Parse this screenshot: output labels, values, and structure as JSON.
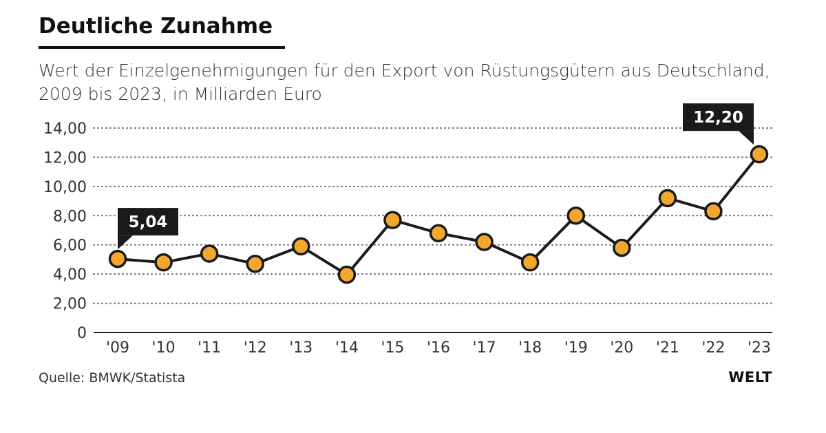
{
  "header": {
    "title": "Deutliche Zunahme",
    "subtitle": "Wert der Einzelgenehmigungen für den Export von Rüstungsgütern aus Deutschland, 2009 bis 2023, in Milliarden Euro"
  },
  "footer": {
    "source": "Quelle: BMWK/Statista",
    "brand": "WELT"
  },
  "colors": {
    "marker_fill": "#F2A72E",
    "line": "#1A1A1A",
    "grid": "#666666",
    "callout_bg": "#1A1A1A",
    "callout_text": "#FFFFFF"
  },
  "chart_data": {
    "type": "line",
    "title": "Deutliche Zunahme",
    "xlabel": "",
    "ylabel": "",
    "categories": [
      "'09",
      "'10",
      "'11",
      "'12",
      "'13",
      "'14",
      "'15",
      "'16",
      "'17",
      "'18",
      "'19",
      "'20",
      "'21",
      "'22",
      "'23"
    ],
    "series": [
      {
        "name": "Wert der Einzelgenehmigungen (Mrd. Euro)",
        "values": [
          5.04,
          4.8,
          5.4,
          4.7,
          5.9,
          3.96,
          7.7,
          6.8,
          6.2,
          4.8,
          8.0,
          5.8,
          9.2,
          8.3,
          12.2
        ]
      }
    ],
    "ylim": [
      0,
      14
    ],
    "yticks": [
      0,
      2,
      4,
      6,
      8,
      10,
      12,
      14
    ],
    "ytick_labels": [
      "0",
      "2,00",
      "4,00",
      "6,00",
      "8,00",
      "10,00",
      "12,00",
      "14,00"
    ],
    "grid": true,
    "annotations": [
      {
        "index": 0,
        "text": "5,04"
      },
      {
        "index": 14,
        "text": "12,20"
      }
    ]
  }
}
